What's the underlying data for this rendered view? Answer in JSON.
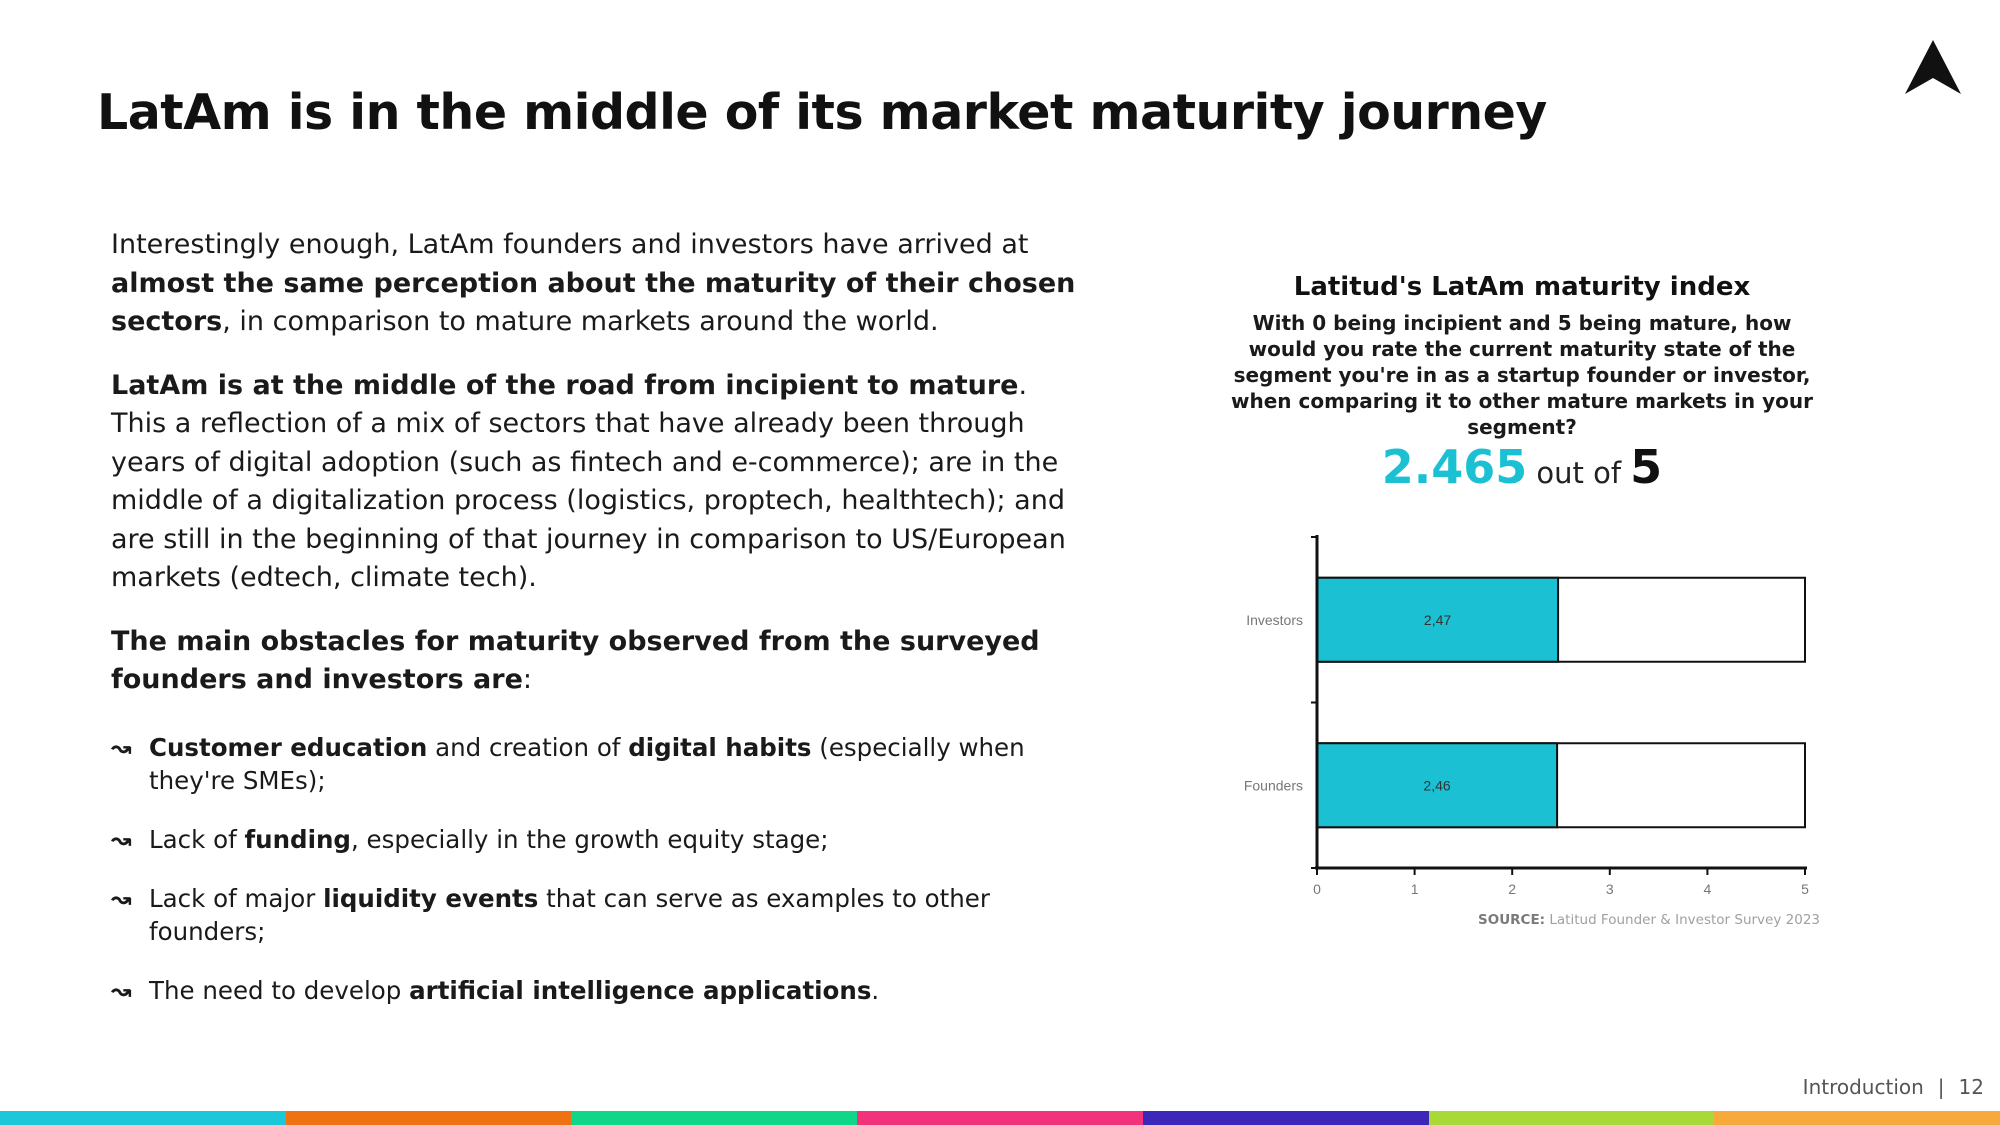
{
  "title": "LatAm is in the middle of its market maturity journey",
  "intro": {
    "p1_a": "Interestingly enough, LatAm founders and investors have arrived at ",
    "p1_b": "almost the same perception about the maturity of their chosen sectors",
    "p1_c": ", in comparison to mature markets around the world.",
    "p2_a": "LatAm is at the middle of the road from incipient to mature",
    "p2_b": ". This a reflection of a mix of sectors that have already been through years of digital adoption (such as fintech and e-commerce); are in the middle of a digitalization process (logistics, proptech, healthtech); and are still in the beginning of that journey in comparison to US/European markets (edtech, climate tech).",
    "p3_a": "The main obstacles for maturity observed from the surveyed founders and investors are",
    "p3_b": ":"
  },
  "bullets": {
    "arrow": "↝",
    "b1": [
      "Customer education",
      " and creation of ",
      "digital habits",
      " (especially when they're SMEs);"
    ],
    "b2": [
      "Lack of ",
      "funding",
      ", especially in the growth equity stage;"
    ],
    "b3": [
      "Lack of major ",
      "liquidity events",
      " that can serve as examples to other founders;"
    ],
    "b4": [
      "The need to develop ",
      "artificial intelligence applications",
      "."
    ]
  },
  "chart_heading": {
    "title": "Latitud's LatAm maturity index",
    "question": "With 0 being incipient and 5 being mature, how would you rate the current maturity state of the segment you're in as a startup founder or investor, when comparing it to other mature markets in your segment?",
    "score": "2.465",
    "score_mid": "out of",
    "score_max": "5"
  },
  "chart_data": {
    "type": "bar",
    "orientation": "horizontal",
    "title": "Latitud's LatAm maturity index",
    "categories": [
      "Investors",
      "Founders"
    ],
    "values": [
      2.47,
      2.46
    ],
    "data_labels": [
      "2,47",
      "2,46"
    ],
    "max": 5,
    "xlim": [
      0,
      5
    ],
    "xticks": [
      "0",
      "1",
      "2",
      "3",
      "4",
      "5"
    ],
    "xlabel": "",
    "ylabel": "",
    "colors": {
      "fill": "#1bc0d2",
      "remainder": "#ffffff",
      "outline": "#111111"
    }
  },
  "source": {
    "label": "SOURCE:",
    "text": " Latitud Founder & Investor Survey 2023"
  },
  "footer": {
    "section": "Introduction",
    "separator": "|",
    "page": "12"
  },
  "theme": {
    "accent": "#1bc0d2",
    "stripe_colors": [
      "#1bc8d8",
      "#ef7212",
      "#10d68a",
      "#f0337a",
      "#3d27b8",
      "#a8d936",
      "#f7a93b"
    ]
  }
}
